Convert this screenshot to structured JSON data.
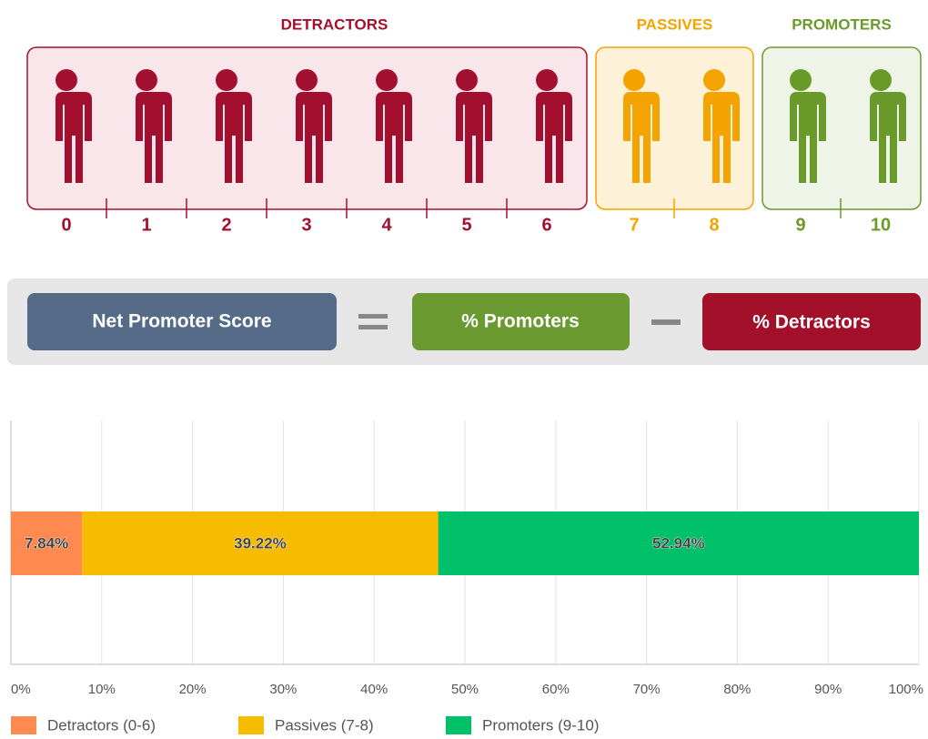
{
  "scale": {
    "groups": [
      {
        "title": "DETRACTORS",
        "color": "#a3102f",
        "fill": "#f8e6ea",
        "scores": [
          0,
          1,
          2,
          3,
          4,
          5,
          6
        ]
      },
      {
        "title": "PASSIVES",
        "color": "#f5a300",
        "fill": "#fdf1d8",
        "scores": [
          7,
          8
        ]
      },
      {
        "title": "PROMOTERS",
        "color": "#6a9a2a",
        "fill": "#eff4e8",
        "scores": [
          9,
          10
        ]
      }
    ]
  },
  "formula": {
    "score": "Net Promoter Score",
    "promoters": "% Promoters",
    "detractors": "% Detractors"
  },
  "chart_data": {
    "type": "bar",
    "orientation": "horizontal",
    "stacked": true,
    "categories": [
      null
    ],
    "series": [
      {
        "name": "Detractors (0-6)",
        "color": "#ff8a4f",
        "values": [
          7.84
        ],
        "value_labels": [
          "7.84%"
        ]
      },
      {
        "name": "Passives (7-8)",
        "color": "#f7bb00",
        "values": [
          39.22
        ],
        "value_labels": [
          "39.22%"
        ]
      },
      {
        "name": "Promoters (9-10)",
        "color": "#00c06a",
        "values": [
          52.94
        ],
        "value_labels": [
          "52.94%"
        ]
      }
    ],
    "xlim": [
      0,
      100
    ],
    "xticks": [
      {
        "value": 0,
        "label": "0%"
      },
      {
        "value": 10,
        "label": "10%"
      },
      {
        "value": 20,
        "label": "20%"
      },
      {
        "value": 30,
        "label": "30%"
      },
      {
        "value": 40,
        "label": "40%"
      },
      {
        "value": 50,
        "label": "50%"
      },
      {
        "value": 60,
        "label": "60%"
      },
      {
        "value": 70,
        "label": "70%"
      },
      {
        "value": 80,
        "label": "80%"
      },
      {
        "value": 90,
        "label": "90%"
      },
      {
        "value": 100,
        "label": "100%"
      }
    ],
    "grid": true,
    "legend": "bottom"
  }
}
